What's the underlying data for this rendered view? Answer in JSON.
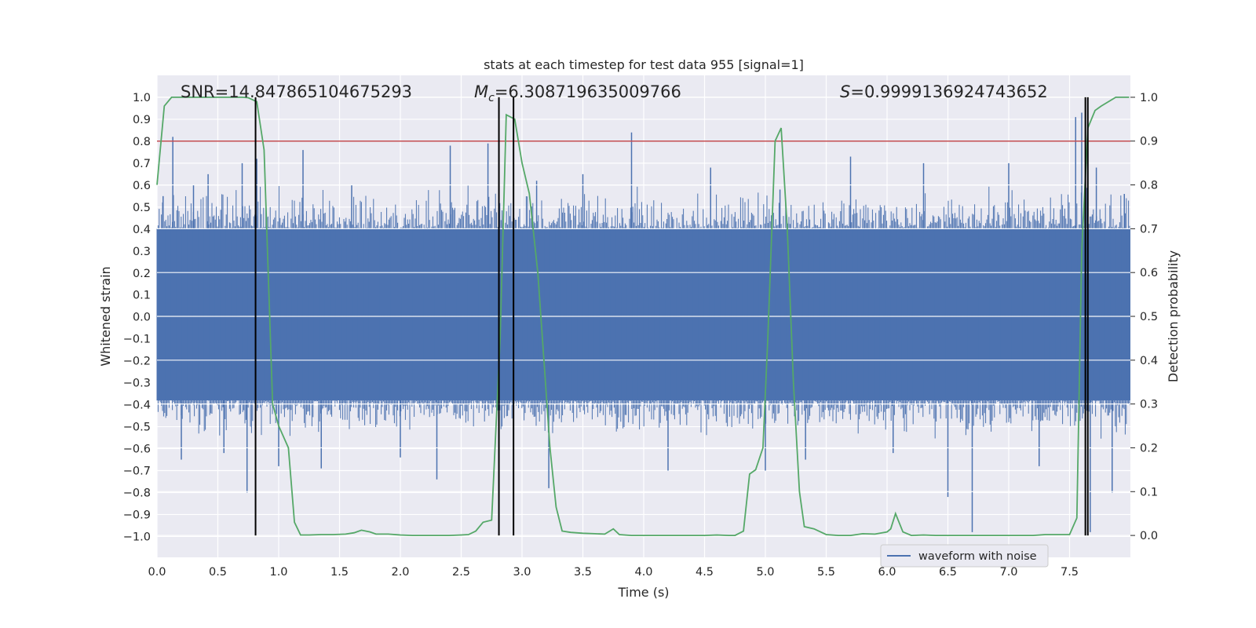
{
  "chart_data": {
    "type": "line",
    "title": "stats at each timestep for test data 955 [signal=1]",
    "xlabel": "Time (s)",
    "ylabel_left": "Whitened strain",
    "ylabel_right": "Detection probability",
    "xlim": [
      0,
      8
    ],
    "ylim_left": [
      -1.095,
      1.1
    ],
    "ylim_right": [
      -0.05,
      1.05
    ],
    "x_ticks": [
      0.0,
      0.5,
      1.0,
      1.5,
      2.0,
      2.5,
      3.0,
      3.5,
      4.0,
      4.5,
      5.0,
      5.5,
      6.0,
      6.5,
      7.0,
      7.5
    ],
    "y_ticks_left": [
      -1.0,
      -0.9,
      -0.8,
      -0.7,
      -0.6,
      -0.5,
      -0.4,
      -0.3,
      -0.2,
      -0.1,
      0.0,
      0.1,
      0.2,
      0.3,
      0.4,
      0.5,
      0.6,
      0.7,
      0.8,
      0.9,
      1.0
    ],
    "y_ticks_right": [
      0.0,
      0.1,
      0.2,
      0.3,
      0.4,
      0.5,
      0.6,
      0.7,
      0.8,
      0.9,
      1.0
    ],
    "grid": true,
    "legend": {
      "placement": "lower-right",
      "entries": [
        "waveform with noise"
      ]
    },
    "annotations": {
      "snr": "SNR=14.847865104675293",
      "mc_prefix": "M",
      "mc_sub": "c",
      "mc_value": "=6.308719635009766",
      "s_prefix": "S",
      "s_value": "=0.9999136924743652"
    },
    "threshold": {
      "value": 0.9,
      "axis": "right",
      "color": "#c44e52"
    },
    "vertical_lines": [
      0.81,
      2.81,
      2.93,
      7.63,
      7.65
    ],
    "strain_series": {
      "name": "waveform with noise",
      "color": "#4c72b0",
      "band_max": 0.4,
      "band_min": -0.38,
      "peaks": [
        {
          "x": 0.05,
          "y": 0.55
        },
        {
          "x": 0.13,
          "y": 0.82
        },
        {
          "x": 0.2,
          "y": -0.65
        },
        {
          "x": 0.3,
          "y": 0.6
        },
        {
          "x": 0.42,
          "y": 0.65
        },
        {
          "x": 0.55,
          "y": -0.62
        },
        {
          "x": 0.7,
          "y": 0.7
        },
        {
          "x": 0.74,
          "y": -0.8
        },
        {
          "x": 0.82,
          "y": 0.72
        },
        {
          "x": 1.0,
          "y": -0.68
        },
        {
          "x": 1.2,
          "y": 0.76
        },
        {
          "x": 1.35,
          "y": -0.69
        },
        {
          "x": 1.6,
          "y": 0.6
        },
        {
          "x": 2.0,
          "y": -0.64
        },
        {
          "x": 2.3,
          "y": -0.74
        },
        {
          "x": 2.41,
          "y": 0.78
        },
        {
          "x": 2.72,
          "y": 0.79
        },
        {
          "x": 3.12,
          "y": 0.62
        },
        {
          "x": 3.22,
          "y": -0.78
        },
        {
          "x": 3.5,
          "y": 0.65
        },
        {
          "x": 3.9,
          "y": 0.84
        },
        {
          "x": 4.2,
          "y": -0.7
        },
        {
          "x": 4.55,
          "y": 0.68
        },
        {
          "x": 5.0,
          "y": -0.7
        },
        {
          "x": 5.12,
          "y": 0.58
        },
        {
          "x": 5.33,
          "y": -0.65
        },
        {
          "x": 5.7,
          "y": 0.73
        },
        {
          "x": 6.05,
          "y": -0.62
        },
        {
          "x": 6.3,
          "y": 0.7
        },
        {
          "x": 6.5,
          "y": -0.82
        },
        {
          "x": 6.7,
          "y": -0.98
        },
        {
          "x": 7.0,
          "y": 0.7
        },
        {
          "x": 7.25,
          "y": -0.68
        },
        {
          "x": 7.55,
          "y": 0.91
        },
        {
          "x": 7.6,
          "y": 0.93
        },
        {
          "x": 7.67,
          "y": -0.98
        },
        {
          "x": 7.72,
          "y": 0.68
        },
        {
          "x": 7.85,
          "y": -0.8
        },
        {
          "x": 7.95,
          "y": 0.56
        }
      ]
    },
    "probability_series": {
      "color": "#55a868",
      "x": [
        0.0,
        0.06,
        0.12,
        0.2,
        0.3,
        0.4,
        0.5,
        0.6,
        0.7,
        0.75,
        0.82,
        0.88,
        0.95,
        1.0,
        1.08,
        1.13,
        1.18,
        1.25,
        1.35,
        1.45,
        1.55,
        1.62,
        1.68,
        1.75,
        1.8,
        1.9,
        2.0,
        2.1,
        2.2,
        2.3,
        2.4,
        2.5,
        2.56,
        2.62,
        2.68,
        2.75,
        2.82,
        2.87,
        2.94,
        3.0,
        3.06,
        3.13,
        3.18,
        3.23,
        3.28,
        3.33,
        3.4,
        3.5,
        3.6,
        3.68,
        3.75,
        3.8,
        3.9,
        4.0,
        4.1,
        4.2,
        4.3,
        4.4,
        4.5,
        4.6,
        4.7,
        4.75,
        4.82,
        4.87,
        4.92,
        4.98,
        5.02,
        5.08,
        5.13,
        5.18,
        5.23,
        5.28,
        5.32,
        5.4,
        5.5,
        5.6,
        5.7,
        5.8,
        5.9,
        6.0,
        6.03,
        6.07,
        6.13,
        6.2,
        6.3,
        6.4,
        6.5,
        6.6,
        6.7,
        6.8,
        6.9,
        7.0,
        7.1,
        7.2,
        7.3,
        7.4,
        7.5,
        7.56,
        7.6,
        7.65,
        7.71,
        7.76,
        7.82,
        7.88,
        7.94,
        7.99
      ],
      "y": [
        0.8,
        0.98,
        1.0,
        1.0,
        1.0,
        1.0,
        1.0,
        1.0,
        1.0,
        0.999,
        0.99,
        0.88,
        0.3,
        0.25,
        0.2,
        0.03,
        0.001,
        0.001,
        0.002,
        0.002,
        0.003,
        0.006,
        0.012,
        0.008,
        0.003,
        0.003,
        0.001,
        0.0,
        0.0,
        0.0,
        0.0,
        0.001,
        0.002,
        0.01,
        0.03,
        0.035,
        0.45,
        0.96,
        0.95,
        0.85,
        0.78,
        0.6,
        0.4,
        0.2,
        0.065,
        0.01,
        0.007,
        0.005,
        0.004,
        0.003,
        0.015,
        0.002,
        0.0,
        0.0,
        0.0,
        0.0,
        0.0,
        0.0,
        0.0,
        0.001,
        0.0,
        0.0,
        0.01,
        0.14,
        0.15,
        0.2,
        0.45,
        0.9,
        0.93,
        0.7,
        0.35,
        0.1,
        0.02,
        0.015,
        0.002,
        0.0,
        0.0,
        0.004,
        0.003,
        0.008,
        0.015,
        0.05,
        0.008,
        0.0,
        0.001,
        0.0,
        0.0,
        0.0,
        0.0,
        0.0,
        0.0,
        0.0,
        0.0,
        0.0,
        0.002,
        0.002,
        0.002,
        0.04,
        0.65,
        0.93,
        0.97,
        0.98,
        0.99,
        1.0,
        1.0,
        1.0
      ]
    }
  }
}
